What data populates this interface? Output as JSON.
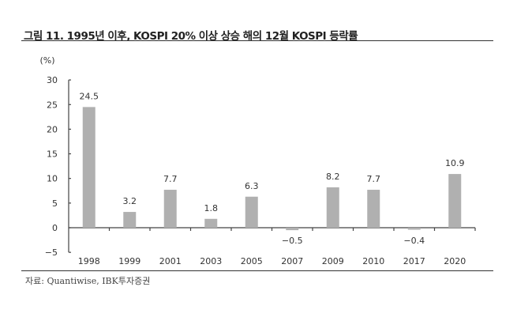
{
  "figure": {
    "title": "그림 11. 1995년 이후, KOSPI 20% 이상 상승 해의 12월 KOSPI 등락률",
    "source": "자료: Quantiwise, IBK투자증권",
    "unit_label": "(%)"
  },
  "colors": {
    "bar": "#b0b0b0",
    "axis": "#444444",
    "text": "#333333"
  },
  "chart_data": {
    "type": "bar",
    "title": "1995년 이후, KOSPI 20% 이상 상승 해의 12월 KOSPI 등락률",
    "xlabel": "",
    "ylabel": "(%)",
    "categories": [
      "1998",
      "1999",
      "2001",
      "2003",
      "2005",
      "2007",
      "2009",
      "2010",
      "2017",
      "2020"
    ],
    "values": [
      24.5,
      3.2,
      7.7,
      1.8,
      6.3,
      -0.5,
      8.2,
      7.7,
      -0.4,
      10.9
    ],
    "data_labels": [
      "24.5",
      "3.2",
      "7.7",
      "1.8",
      "6.3",
      "-0.5",
      "8.2",
      "7.7",
      "-0.4",
      "10.9"
    ],
    "ylim": [
      -5,
      30
    ],
    "yticks": [
      -5,
      0,
      5,
      10,
      15,
      20,
      25,
      30
    ],
    "ytick_labels": [
      "−5",
      "0",
      "5",
      "10",
      "15",
      "20",
      "25",
      "30"
    ],
    "grid": false,
    "legend": null
  }
}
